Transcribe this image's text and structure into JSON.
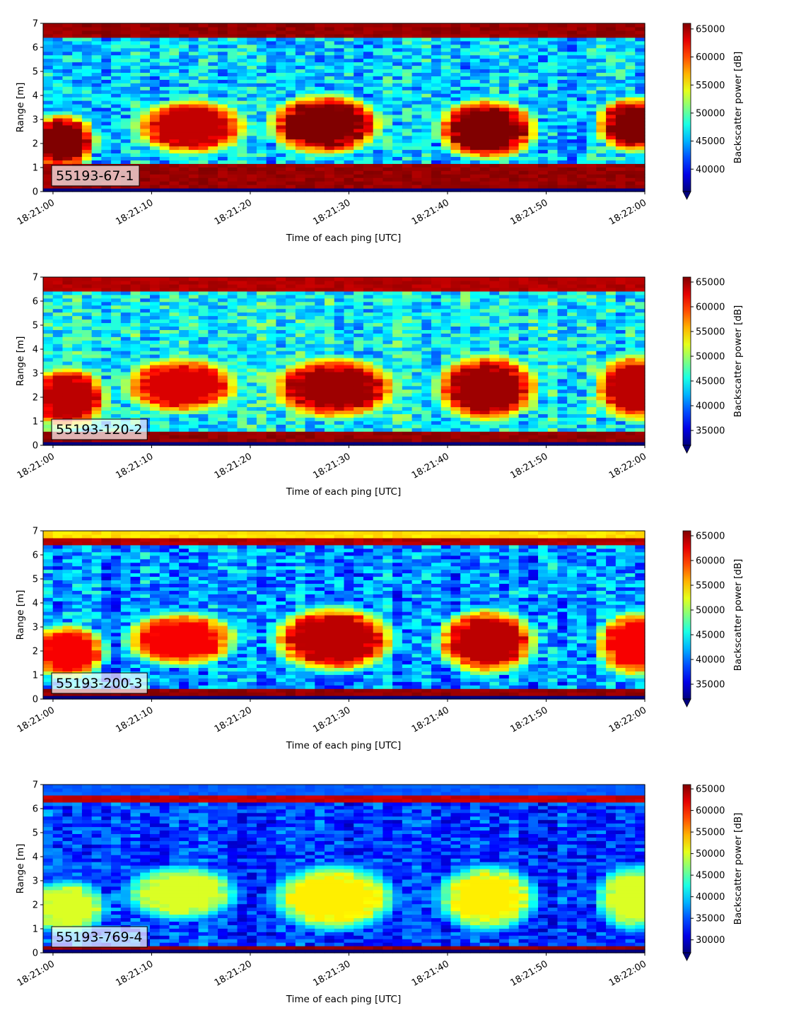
{
  "figure": {
    "colormap": "jet",
    "colors": {
      "min_jet": "#00007f",
      "max_jet": "#7f0000",
      "label_box_bg": "#ffffff",
      "frame": "#000000"
    }
  },
  "chart_data": [
    {
      "type": "heatmap",
      "label": "55193-67-1",
      "xlabel": "Time of each ping [UTC]",
      "ylabel": "Range [m]",
      "colorbar_label": "Backscatter power [dB]",
      "x_ticks": [
        "18:21:00",
        "18:21:10",
        "18:21:20",
        "18:21:30",
        "18:21:40",
        "18:21:50",
        "18:22:00"
      ],
      "y_ticks": [
        0,
        1,
        2,
        3,
        4,
        5,
        6,
        7
      ],
      "ylim": [
        0,
        7
      ],
      "colorbar_ticks": [
        40000,
        45000,
        50000,
        55000,
        60000,
        65000
      ],
      "clim": [
        36000,
        66000
      ],
      "colorbar_extend": "min",
      "background_level": 46000,
      "noise": 4000,
      "bands": [
        {
          "r0": 0.2,
          "r1": 1.1,
          "level": 66000
        },
        {
          "r0": 6.45,
          "r1": 7.0,
          "level": 66000
        }
      ],
      "blobs": [
        {
          "t": 1.0,
          "r": 2.1,
          "dt": 3.0,
          "dr": 1.0,
          "level": 66000
        },
        {
          "t": 14.0,
          "r": 2.7,
          "dt": 5.0,
          "dr": 1.0,
          "level": 64000
        },
        {
          "t": 27.5,
          "r": 2.8,
          "dt": 5.0,
          "dr": 1.1,
          "level": 66000
        },
        {
          "t": 44.0,
          "r": 2.6,
          "dt": 4.5,
          "dr": 1.1,
          "level": 66000
        },
        {
          "t": 59.0,
          "r": 2.8,
          "dt": 3.5,
          "dr": 1.0,
          "level": 66000
        }
      ]
    },
    {
      "type": "heatmap",
      "label": "55193-120-2",
      "xlabel": "Time of each ping [UTC]",
      "ylabel": "Range [m]",
      "colorbar_label": "Backscatter power [dB]",
      "x_ticks": [
        "18:21:00",
        "18:21:10",
        "18:21:20",
        "18:21:30",
        "18:21:40",
        "18:21:50",
        "18:22:00"
      ],
      "y_ticks": [
        0,
        1,
        2,
        3,
        4,
        5,
        6,
        7
      ],
      "ylim": [
        0,
        7
      ],
      "colorbar_ticks": [
        35000,
        40000,
        45000,
        50000,
        55000,
        60000,
        65000
      ],
      "clim": [
        32000,
        66000
      ],
      "colorbar_extend": "min",
      "background_level": 45000,
      "noise": 4500,
      "bands": [
        {
          "r0": 0.1,
          "r1": 0.6,
          "level": 66000
        },
        {
          "r0": 6.4,
          "r1": 7.0,
          "level": 65000
        }
      ],
      "blobs": [
        {
          "t": 1.5,
          "r": 2.0,
          "dt": 3.5,
          "dr": 1.1,
          "level": 64000
        },
        {
          "t": 13.0,
          "r": 2.5,
          "dt": 5.0,
          "dr": 1.0,
          "level": 63000
        },
        {
          "t": 28.5,
          "r": 2.4,
          "dt": 5.5,
          "dr": 1.1,
          "level": 65000
        },
        {
          "t": 44.0,
          "r": 2.4,
          "dt": 4.5,
          "dr": 1.2,
          "level": 65000
        },
        {
          "t": 59.0,
          "r": 2.4,
          "dt": 3.5,
          "dr": 1.2,
          "level": 64000
        }
      ]
    },
    {
      "type": "heatmap",
      "label": "55193-200-3",
      "xlabel": "Time of each ping [UTC]",
      "ylabel": "Range [m]",
      "colorbar_label": "Backscatter power [dB]",
      "x_ticks": [
        "18:21:00",
        "18:21:10",
        "18:21:20",
        "18:21:30",
        "18:21:40",
        "18:21:50",
        "18:22:00"
      ],
      "y_ticks": [
        0,
        1,
        2,
        3,
        4,
        5,
        6,
        7
      ],
      "ylim": [
        0,
        7
      ],
      "colorbar_ticks": [
        35000,
        40000,
        45000,
        50000,
        55000,
        60000,
        65000
      ],
      "clim": [
        32000,
        66000
      ],
      "colorbar_extend": "min",
      "background_level": 41000,
      "noise": 4500,
      "bands": [
        {
          "r0": 0.1,
          "r1": 0.5,
          "level": 66000
        },
        {
          "r0": 6.35,
          "r1": 6.75,
          "level": 65000
        },
        {
          "r0": 6.75,
          "r1": 7.0,
          "level": 55000
        }
      ],
      "blobs": [
        {
          "t": 1.5,
          "r": 2.0,
          "dt": 3.5,
          "dr": 1.0,
          "level": 62000
        },
        {
          "t": 13.0,
          "r": 2.5,
          "dt": 5.0,
          "dr": 1.0,
          "level": 62000
        },
        {
          "t": 28.5,
          "r": 2.5,
          "dt": 5.5,
          "dr": 1.2,
          "level": 64000
        },
        {
          "t": 44.0,
          "r": 2.4,
          "dt": 4.5,
          "dr": 1.2,
          "level": 64000
        },
        {
          "t": 59.0,
          "r": 2.3,
          "dt": 3.5,
          "dr": 1.2,
          "level": 62000
        }
      ]
    },
    {
      "type": "heatmap",
      "label": "55193-769-4",
      "xlabel": "Time of each ping [UTC]",
      "ylabel": "Range [m]",
      "colorbar_label": "Backscatter power [dB]",
      "x_ticks": [
        "18:21:00",
        "18:21:10",
        "18:21:20",
        "18:21:30",
        "18:21:40",
        "18:21:50",
        "18:22:00"
      ],
      "y_ticks": [
        0,
        1,
        2,
        3,
        4,
        5,
        6,
        7
      ],
      "ylim": [
        0,
        7
      ],
      "colorbar_ticks": [
        30000,
        35000,
        40000,
        45000,
        50000,
        55000,
        60000,
        65000
      ],
      "clim": [
        27000,
        66000
      ],
      "colorbar_extend": "min",
      "background_level": 34000,
      "noise": 4000,
      "bands": [
        {
          "r0": 0.2,
          "r1": 0.35,
          "level": 66000
        },
        {
          "r0": 6.3,
          "r1": 6.55,
          "level": 64000
        },
        {
          "r0": 6.55,
          "r1": 7.0,
          "level": 36000
        }
      ],
      "blobs": [
        {
          "t": 1.5,
          "r": 1.9,
          "dt": 3.5,
          "dr": 1.0,
          "level": 50000
        },
        {
          "t": 13.0,
          "r": 2.5,
          "dt": 5.0,
          "dr": 1.0,
          "level": 50000
        },
        {
          "t": 28.5,
          "r": 2.3,
          "dt": 5.5,
          "dr": 1.2,
          "level": 52000
        },
        {
          "t": 44.0,
          "r": 2.3,
          "dt": 4.5,
          "dr": 1.2,
          "level": 52000
        },
        {
          "t": 59.0,
          "r": 2.3,
          "dt": 3.5,
          "dr": 1.2,
          "level": 50000
        }
      ]
    }
  ]
}
